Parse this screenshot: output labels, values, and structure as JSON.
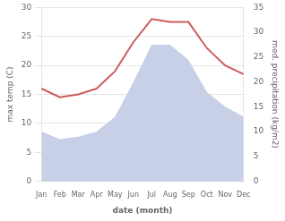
{
  "chart_data": {
    "type": "line",
    "categories": [
      "Jan",
      "Feb",
      "Mar",
      "Apr",
      "May",
      "Jun",
      "Jul",
      "Aug",
      "Sep",
      "Oct",
      "Nov",
      "Dec"
    ],
    "series": [
      {
        "type": "area",
        "color": "#c8d0e8",
        "axis": "y2",
        "values": [
          10,
          8.5,
          9,
          10,
          13,
          20,
          27.5,
          27.5,
          24.5,
          18,
          15,
          13
        ]
      },
      {
        "type": "line",
        "color": "#cd5c5c",
        "values": [
          16,
          14.5,
          15,
          16,
          19,
          24,
          28,
          27.5,
          27.5,
          23,
          20,
          18.5
        ]
      }
    ],
    "xlabel": "date (month)",
    "ylabel": "max temp (C)",
    "y2label": "med. precipitation (kg/m2)",
    "ylim": [
      0,
      30
    ],
    "yticks": [
      0,
      5,
      10,
      15,
      20,
      25,
      30
    ],
    "y2lim": [
      0,
      35
    ],
    "y2ticks": [
      0,
      5,
      10,
      15,
      20,
      25,
      30,
      35
    ],
    "grid": true
  }
}
